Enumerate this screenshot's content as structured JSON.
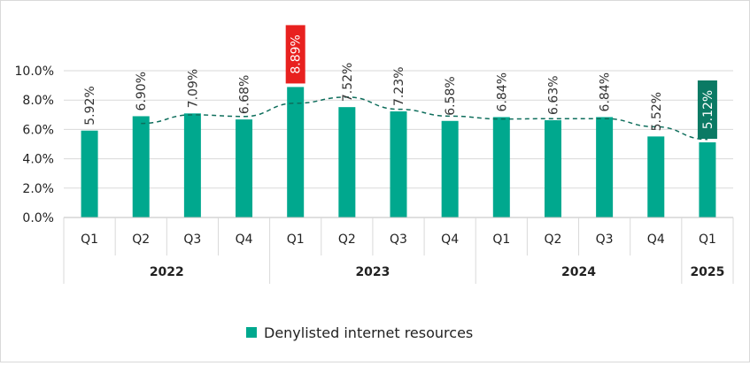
{
  "chart_data": {
    "type": "bar",
    "series": [
      {
        "name": "Denylisted internet resources",
        "color": "#00a88e",
        "values": [
          5.92,
          6.9,
          7.09,
          6.68,
          8.89,
          7.52,
          7.23,
          6.58,
          6.84,
          6.63,
          6.84,
          5.52,
          5.12
        ]
      }
    ],
    "categories": [
      "Q1",
      "Q2",
      "Q3",
      "Q4",
      "Q1",
      "Q2",
      "Q3",
      "Q4",
      "Q1",
      "Q2",
      "Q3",
      "Q4",
      "Q1"
    ],
    "data_labels": [
      "5.92%",
      "6.90%",
      "7.09%",
      "6.68%",
      "8.89%",
      "7.52%",
      "7.23%",
      "6.58%",
      "6.84%",
      "6.63%",
      "6.84%",
      "5.52%",
      "5.12%"
    ],
    "year_groups": [
      {
        "label": "2022",
        "count": 4
      },
      {
        "label": "2023",
        "count": 4
      },
      {
        "label": "2024",
        "count": 4
      },
      {
        "label": "2025",
        "count": 1
      }
    ],
    "y_ticks": [
      "0.0%",
      "2.0%",
      "4.0%",
      "6.0%",
      "8.0%",
      "10.0%"
    ],
    "ylim": [
      0,
      10
    ],
    "trendline": {
      "style": "dashed",
      "color": "#0e6e5c",
      "type": "moving average (2 periods)"
    },
    "highlights": [
      {
        "index": 4,
        "label_background": "#e8211f",
        "label_color": "#ffffff"
      },
      {
        "index": 12,
        "label_background": "#0b7a64",
        "label_color": "#ffffff"
      }
    ],
    "grid": true,
    "legend_position": "bottom"
  }
}
